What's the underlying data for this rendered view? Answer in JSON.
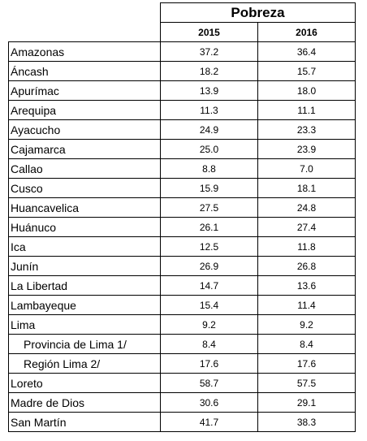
{
  "table": {
    "title": "Pobreza",
    "columns": [
      "2015",
      "2016"
    ],
    "rows": [
      {
        "label": "Amazonas",
        "v2015": "37.2",
        "v2016": "36.4",
        "indent": false
      },
      {
        "label": "Áncash",
        "v2015": "18.2",
        "v2016": "15.7",
        "indent": false
      },
      {
        "label": "Apurímac",
        "v2015": "13.9",
        "v2016": "18.0",
        "indent": false
      },
      {
        "label": "Arequipa",
        "v2015": "11.3",
        "v2016": "11.1",
        "indent": false
      },
      {
        "label": "Ayacucho",
        "v2015": "24.9",
        "v2016": "23.3",
        "indent": false
      },
      {
        "label": "Cajamarca",
        "v2015": "25.0",
        "v2016": "23.9",
        "indent": false
      },
      {
        "label": "Callao",
        "v2015": "8.8",
        "v2016": "7.0",
        "indent": false
      },
      {
        "label": "Cusco",
        "v2015": "15.9",
        "v2016": "18.1",
        "indent": false
      },
      {
        "label": "Huancavelica",
        "v2015": "27.5",
        "v2016": "24.8",
        "indent": false
      },
      {
        "label": "Huánuco",
        "v2015": "26.1",
        "v2016": "27.4",
        "indent": false
      },
      {
        "label": "Ica",
        "v2015": "12.5",
        "v2016": "11.8",
        "indent": false
      },
      {
        "label": "Junín",
        "v2015": "26.9",
        "v2016": "26.8",
        "indent": false
      },
      {
        "label": "La Libertad",
        "v2015": "14.7",
        "v2016": "13.6",
        "indent": false
      },
      {
        "label": "Lambayeque",
        "v2015": "15.4",
        "v2016": "11.4",
        "indent": false
      },
      {
        "label": "Lima",
        "v2015": "9.2",
        "v2016": "9.2",
        "indent": false
      },
      {
        "label": "Provincia de Lima 1/",
        "v2015": "8.4",
        "v2016": "8.4",
        "indent": true
      },
      {
        "label": "Región Lima 2/",
        "v2015": "17.6",
        "v2016": "17.6",
        "indent": true
      },
      {
        "label": "Loreto",
        "v2015": "58.7",
        "v2016": "57.5",
        "indent": false
      },
      {
        "label": "Madre de Dios",
        "v2015": "30.6",
        "v2016": "29.1",
        "indent": false
      },
      {
        "label": "San Martín",
        "v2015": "41.7",
        "v2016": "38.3",
        "indent": false
      }
    ]
  }
}
